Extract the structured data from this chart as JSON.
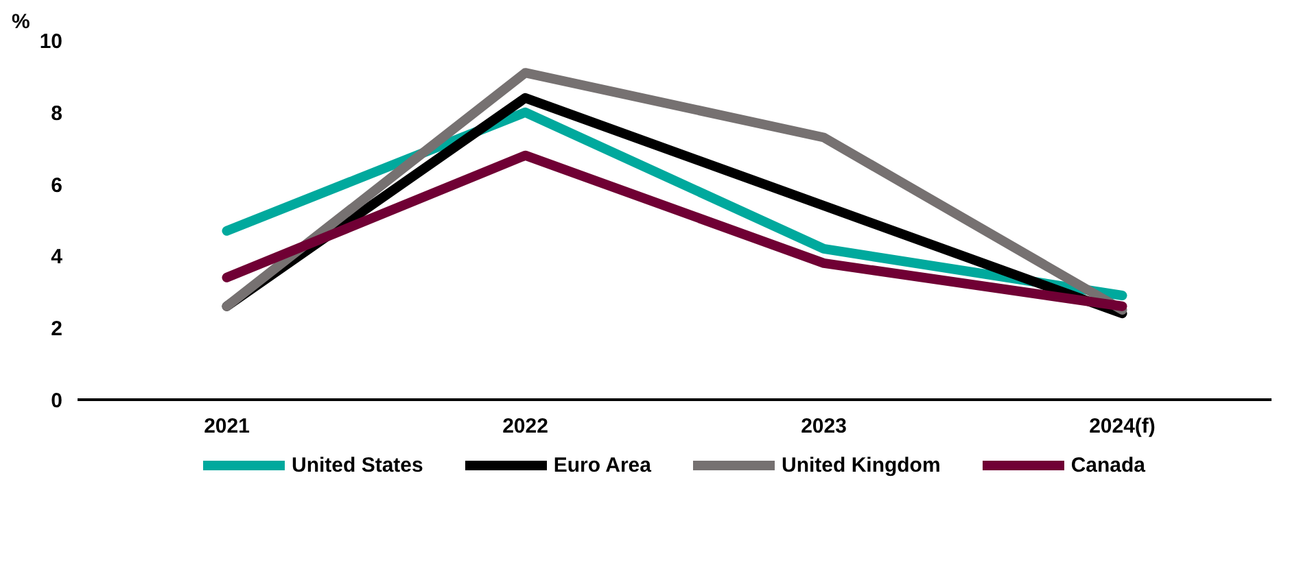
{
  "chart_data": {
    "type": "line",
    "ylabel": "%",
    "categories": [
      "2021",
      "2022",
      "2023",
      "2024(f)"
    ],
    "ylim": [
      0,
      10
    ],
    "yticks": [
      0,
      2,
      4,
      6,
      8,
      10
    ],
    "grid": false,
    "legend": "bottom",
    "line_style": "solid",
    "marker": "none",
    "series": [
      {
        "name": "United States",
        "color": "#00a99d",
        "values": [
          4.7,
          8.0,
          4.2,
          2.9
        ]
      },
      {
        "name": "Euro Area",
        "color": "#000000",
        "values": [
          2.6,
          8.4,
          5.4,
          2.4
        ]
      },
      {
        "name": "United Kingdom",
        "color": "#767171",
        "values": [
          2.6,
          9.1,
          7.3,
          2.5
        ]
      },
      {
        "name": "Canada",
        "color": "#700034",
        "values": [
          3.4,
          6.8,
          3.8,
          2.6
        ]
      }
    ]
  }
}
